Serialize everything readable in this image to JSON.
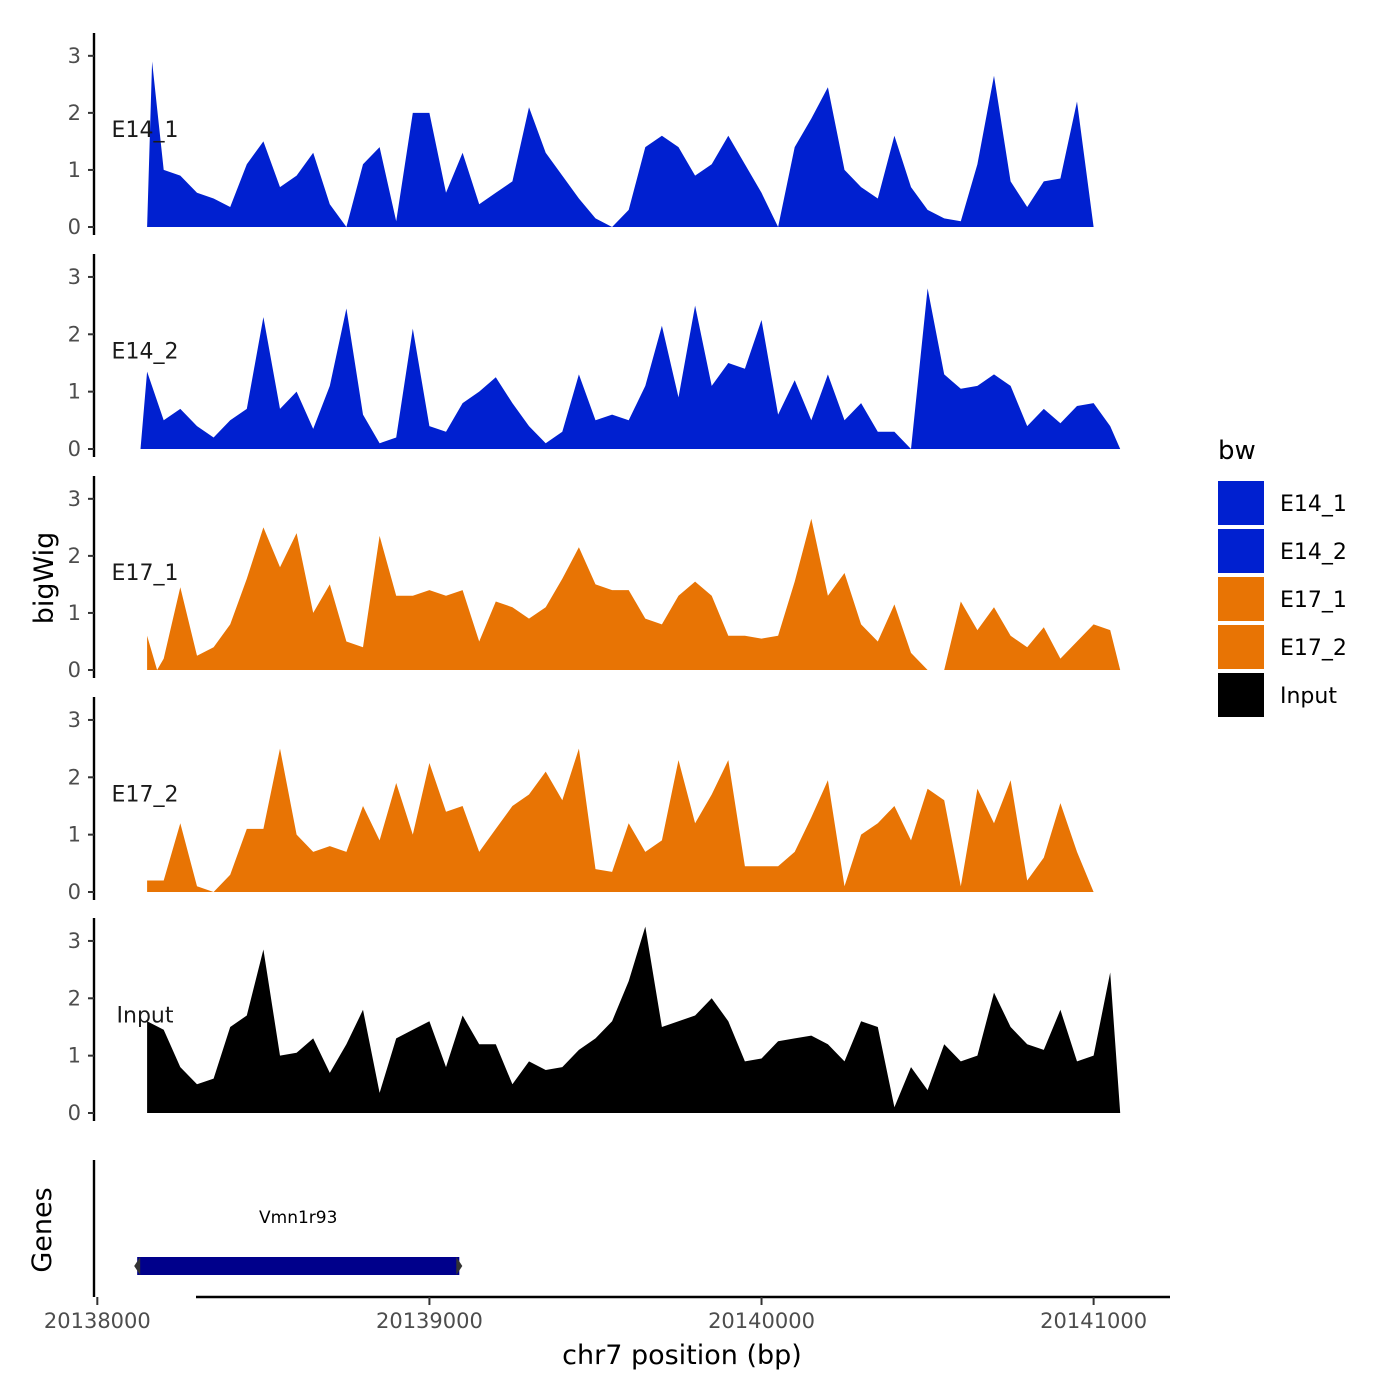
{
  "chart_data": {
    "type": "area",
    "title": "",
    "xlabel": "chr7 position (bp)",
    "ylabel": "bigWig",
    "genes_axis_label": "Genes",
    "xlim": [
      20137990,
      20141230
    ],
    "x_ticks": [
      20138000,
      20139000,
      20140000,
      20141000
    ],
    "x_tick_labels": [
      "20138000",
      "20139000",
      "20140000",
      "20141000"
    ],
    "ylim": [
      0,
      3.4
    ],
    "y_ticks": [
      0,
      1,
      2,
      3
    ],
    "y_tick_labels": [
      "0",
      "1",
      "2",
      "3"
    ],
    "legend": {
      "title": "bw",
      "position": "right",
      "entries": [
        {
          "label": "E14_1",
          "color": "#0020D0"
        },
        {
          "label": "E14_2",
          "color": "#0020D0"
        },
        {
          "label": "E17_1",
          "color": "#E87404"
        },
        {
          "label": "E17_2",
          "color": "#E87404"
        },
        {
          "label": "Input",
          "color": "#000000"
        }
      ]
    },
    "series": [
      {
        "name": "E14_1",
        "color": "#0020D0",
        "x": [
          20138150,
          20138165,
          20138200,
          20138250,
          20138300,
          20138350,
          20138400,
          20138450,
          20138500,
          20138550,
          20138600,
          20138650,
          20138700,
          20138750,
          20138800,
          20138850,
          20138900,
          20138950,
          20139000,
          20139050,
          20139100,
          20139150,
          20139200,
          20139250,
          20139300,
          20139350,
          20139400,
          20139450,
          20139500,
          20139550,
          20139600,
          20139650,
          20139700,
          20139750,
          20139800,
          20139850,
          20139900,
          20139950,
          20140000,
          20140050,
          20140100,
          20140150,
          20140200,
          20140250,
          20140300,
          20140350,
          20140400,
          20140450,
          20140500,
          20140550,
          20140600,
          20140650,
          20140700,
          20140750,
          20140800,
          20140850,
          20140900,
          20140950,
          20141000,
          20141050,
          20141080
        ],
        "values": [
          0,
          2.9,
          1.0,
          0.9,
          0.6,
          0.5,
          0.35,
          1.1,
          1.5,
          0.7,
          0.9,
          1.3,
          0.4,
          0,
          1.1,
          1.4,
          0.1,
          2.0,
          2.0,
          0.6,
          1.3,
          0.4,
          0.6,
          0.8,
          2.1,
          1.3,
          0.9,
          0.5,
          0.15,
          0,
          0.3,
          1.4,
          1.6,
          1.4,
          0.9,
          1.1,
          1.6,
          1.1,
          0.6,
          0,
          1.4,
          1.9,
          2.45,
          1.0,
          0.7,
          0.5,
          1.6,
          0.7,
          0.3,
          0.15,
          0.1,
          1.1,
          2.65,
          0.8,
          0.35,
          0.8,
          0.85,
          2.2,
          0,
          0,
          0
        ]
      },
      {
        "name": "E14_2",
        "color": "#0020D0",
        "x": [
          20138130,
          20138150,
          20138200,
          20138250,
          20138300,
          20138350,
          20138400,
          20138450,
          20138500,
          20138550,
          20138600,
          20138650,
          20138700,
          20138750,
          20138800,
          20138850,
          20138900,
          20138950,
          20139000,
          20139050,
          20139100,
          20139150,
          20139200,
          20139250,
          20139300,
          20139350,
          20139400,
          20139450,
          20139500,
          20139550,
          20139600,
          20139650,
          20139700,
          20139750,
          20139800,
          20139850,
          20139900,
          20139950,
          20140000,
          20140050,
          20140100,
          20140150,
          20140200,
          20140250,
          20140300,
          20140350,
          20140400,
          20140450,
          20140500,
          20140550,
          20140600,
          20140650,
          20140700,
          20140750,
          20140800,
          20140850,
          20140900,
          20140950,
          20141000,
          20141050,
          20141080
        ],
        "values": [
          0,
          1.35,
          0.5,
          0.7,
          0.4,
          0.2,
          0.5,
          0.7,
          2.3,
          0.7,
          1.0,
          0.35,
          1.1,
          2.45,
          0.6,
          0.1,
          0.2,
          2.1,
          0.4,
          0.3,
          0.8,
          1.0,
          1.25,
          0.8,
          0.4,
          0.1,
          0.3,
          1.3,
          0.5,
          0.6,
          0.5,
          1.1,
          2.15,
          0.9,
          2.5,
          1.1,
          1.5,
          1.4,
          2.25,
          0.6,
          1.2,
          0.5,
          1.3,
          0.5,
          0.8,
          0.3,
          0.3,
          0,
          2.8,
          1.3,
          1.05,
          1.1,
          1.3,
          1.1,
          0.4,
          0.7,
          0.45,
          0.75,
          0.8,
          0.4,
          0
        ]
      },
      {
        "name": "E17_1",
        "color": "#E87404",
        "x": [
          20138150,
          20138180,
          20138200,
          20138250,
          20138300,
          20138350,
          20138400,
          20138450,
          20138500,
          20138550,
          20138600,
          20138650,
          20138700,
          20138750,
          20138800,
          20138850,
          20138900,
          20138950,
          20139000,
          20139050,
          20139100,
          20139150,
          20139200,
          20139250,
          20139300,
          20139350,
          20139400,
          20139450,
          20139500,
          20139550,
          20139600,
          20139650,
          20139700,
          20139750,
          20139800,
          20139850,
          20139900,
          20139950,
          20140000,
          20140050,
          20140100,
          20140150,
          20140200,
          20140250,
          20140300,
          20140350,
          20140400,
          20140450,
          20140500,
          20140550,
          20140600,
          20140650,
          20140700,
          20140750,
          20140800,
          20140850,
          20140900,
          20140950,
          20141000,
          20141050,
          20141080
        ],
        "values": [
          0.6,
          0,
          0.2,
          1.45,
          0.25,
          0.4,
          0.8,
          1.6,
          2.5,
          1.8,
          2.4,
          1.0,
          1.5,
          0.5,
          0.4,
          2.35,
          1.3,
          1.3,
          1.4,
          1.3,
          1.4,
          0.5,
          1.2,
          1.1,
          0.9,
          1.1,
          1.6,
          2.15,
          1.5,
          1.4,
          1.4,
          0.9,
          0.8,
          1.3,
          1.55,
          1.3,
          0.6,
          0.6,
          0.55,
          0.6,
          1.55,
          2.65,
          1.3,
          1.7,
          0.8,
          0.5,
          1.15,
          0.3,
          0,
          0,
          1.2,
          0.7,
          1.1,
          0.6,
          0.4,
          0.75,
          0.2,
          0.5,
          0.8,
          0.7,
          0
        ]
      },
      {
        "name": "E17_2",
        "color": "#E87404",
        "x": [
          20138150,
          20138200,
          20138250,
          20138300,
          20138350,
          20138400,
          20138450,
          20138500,
          20138550,
          20138600,
          20138650,
          20138700,
          20138750,
          20138800,
          20138850,
          20138900,
          20138950,
          20139000,
          20139050,
          20139100,
          20139150,
          20139200,
          20139250,
          20139300,
          20139350,
          20139400,
          20139450,
          20139500,
          20139550,
          20139600,
          20139650,
          20139700,
          20139750,
          20139800,
          20139850,
          20139900,
          20139950,
          20140000,
          20140050,
          20140100,
          20140150,
          20140200,
          20140250,
          20140300,
          20140350,
          20140400,
          20140450,
          20140500,
          20140550,
          20140600,
          20140650,
          20140700,
          20140750,
          20140800,
          20140850,
          20140900,
          20140950,
          20141000,
          20141050,
          20141080
        ],
        "values": [
          0.2,
          0.2,
          1.2,
          0.1,
          0,
          0.3,
          1.1,
          1.1,
          2.5,
          1.0,
          0.7,
          0.8,
          0.7,
          1.5,
          0.9,
          1.9,
          1.0,
          2.25,
          1.4,
          1.5,
          0.7,
          1.1,
          1.5,
          1.7,
          2.1,
          1.6,
          2.5,
          0.4,
          0.35,
          1.2,
          0.7,
          0.9,
          2.3,
          1.2,
          1.7,
          2.3,
          0.45,
          0.45,
          0.45,
          0.7,
          1.3,
          1.95,
          0.1,
          1.0,
          1.2,
          1.5,
          0.9,
          1.8,
          1.6,
          0.1,
          1.8,
          1.2,
          1.95,
          0.2,
          0.6,
          1.55,
          0.7,
          0,
          0,
          0
        ]
      },
      {
        "name": "Input",
        "color": "#000000",
        "x": [
          20138150,
          20138200,
          20138250,
          20138300,
          20138350,
          20138400,
          20138450,
          20138500,
          20138550,
          20138600,
          20138650,
          20138700,
          20138750,
          20138800,
          20138850,
          20138900,
          20138950,
          20139000,
          20139050,
          20139100,
          20139150,
          20139200,
          20139250,
          20139300,
          20139350,
          20139400,
          20139450,
          20139500,
          20139550,
          20139600,
          20139650,
          20139700,
          20139750,
          20139800,
          20139850,
          20139900,
          20139950,
          20140000,
          20140050,
          20140100,
          20140150,
          20140200,
          20140250,
          20140300,
          20140350,
          20140400,
          20140450,
          20140500,
          20140550,
          20140600,
          20140650,
          20140700,
          20140750,
          20140800,
          20140850,
          20140900,
          20140950,
          20141000,
          20141050,
          20141080
        ],
        "values": [
          1.6,
          1.45,
          0.8,
          0.5,
          0.6,
          1.5,
          1.7,
          2.85,
          1.0,
          1.05,
          1.3,
          0.7,
          1.2,
          1.8,
          0.35,
          1.3,
          1.45,
          1.6,
          0.8,
          1.7,
          1.2,
          1.2,
          0.5,
          0.9,
          0.75,
          0.8,
          1.1,
          1.3,
          1.6,
          2.3,
          3.25,
          1.5,
          1.6,
          1.7,
          2.0,
          1.6,
          0.9,
          0.95,
          1.25,
          1.3,
          1.35,
          1.2,
          0.9,
          1.6,
          1.5,
          0.1,
          0.8,
          0.4,
          1.2,
          0.9,
          1.0,
          2.1,
          1.5,
          1.2,
          1.1,
          1.8,
          0.9,
          1.0,
          2.45,
          0
        ]
      }
    ],
    "genes": [
      {
        "name": "Vmn1r93",
        "start": 20138120,
        "end": 20139090,
        "color": "#00008B"
      }
    ]
  }
}
